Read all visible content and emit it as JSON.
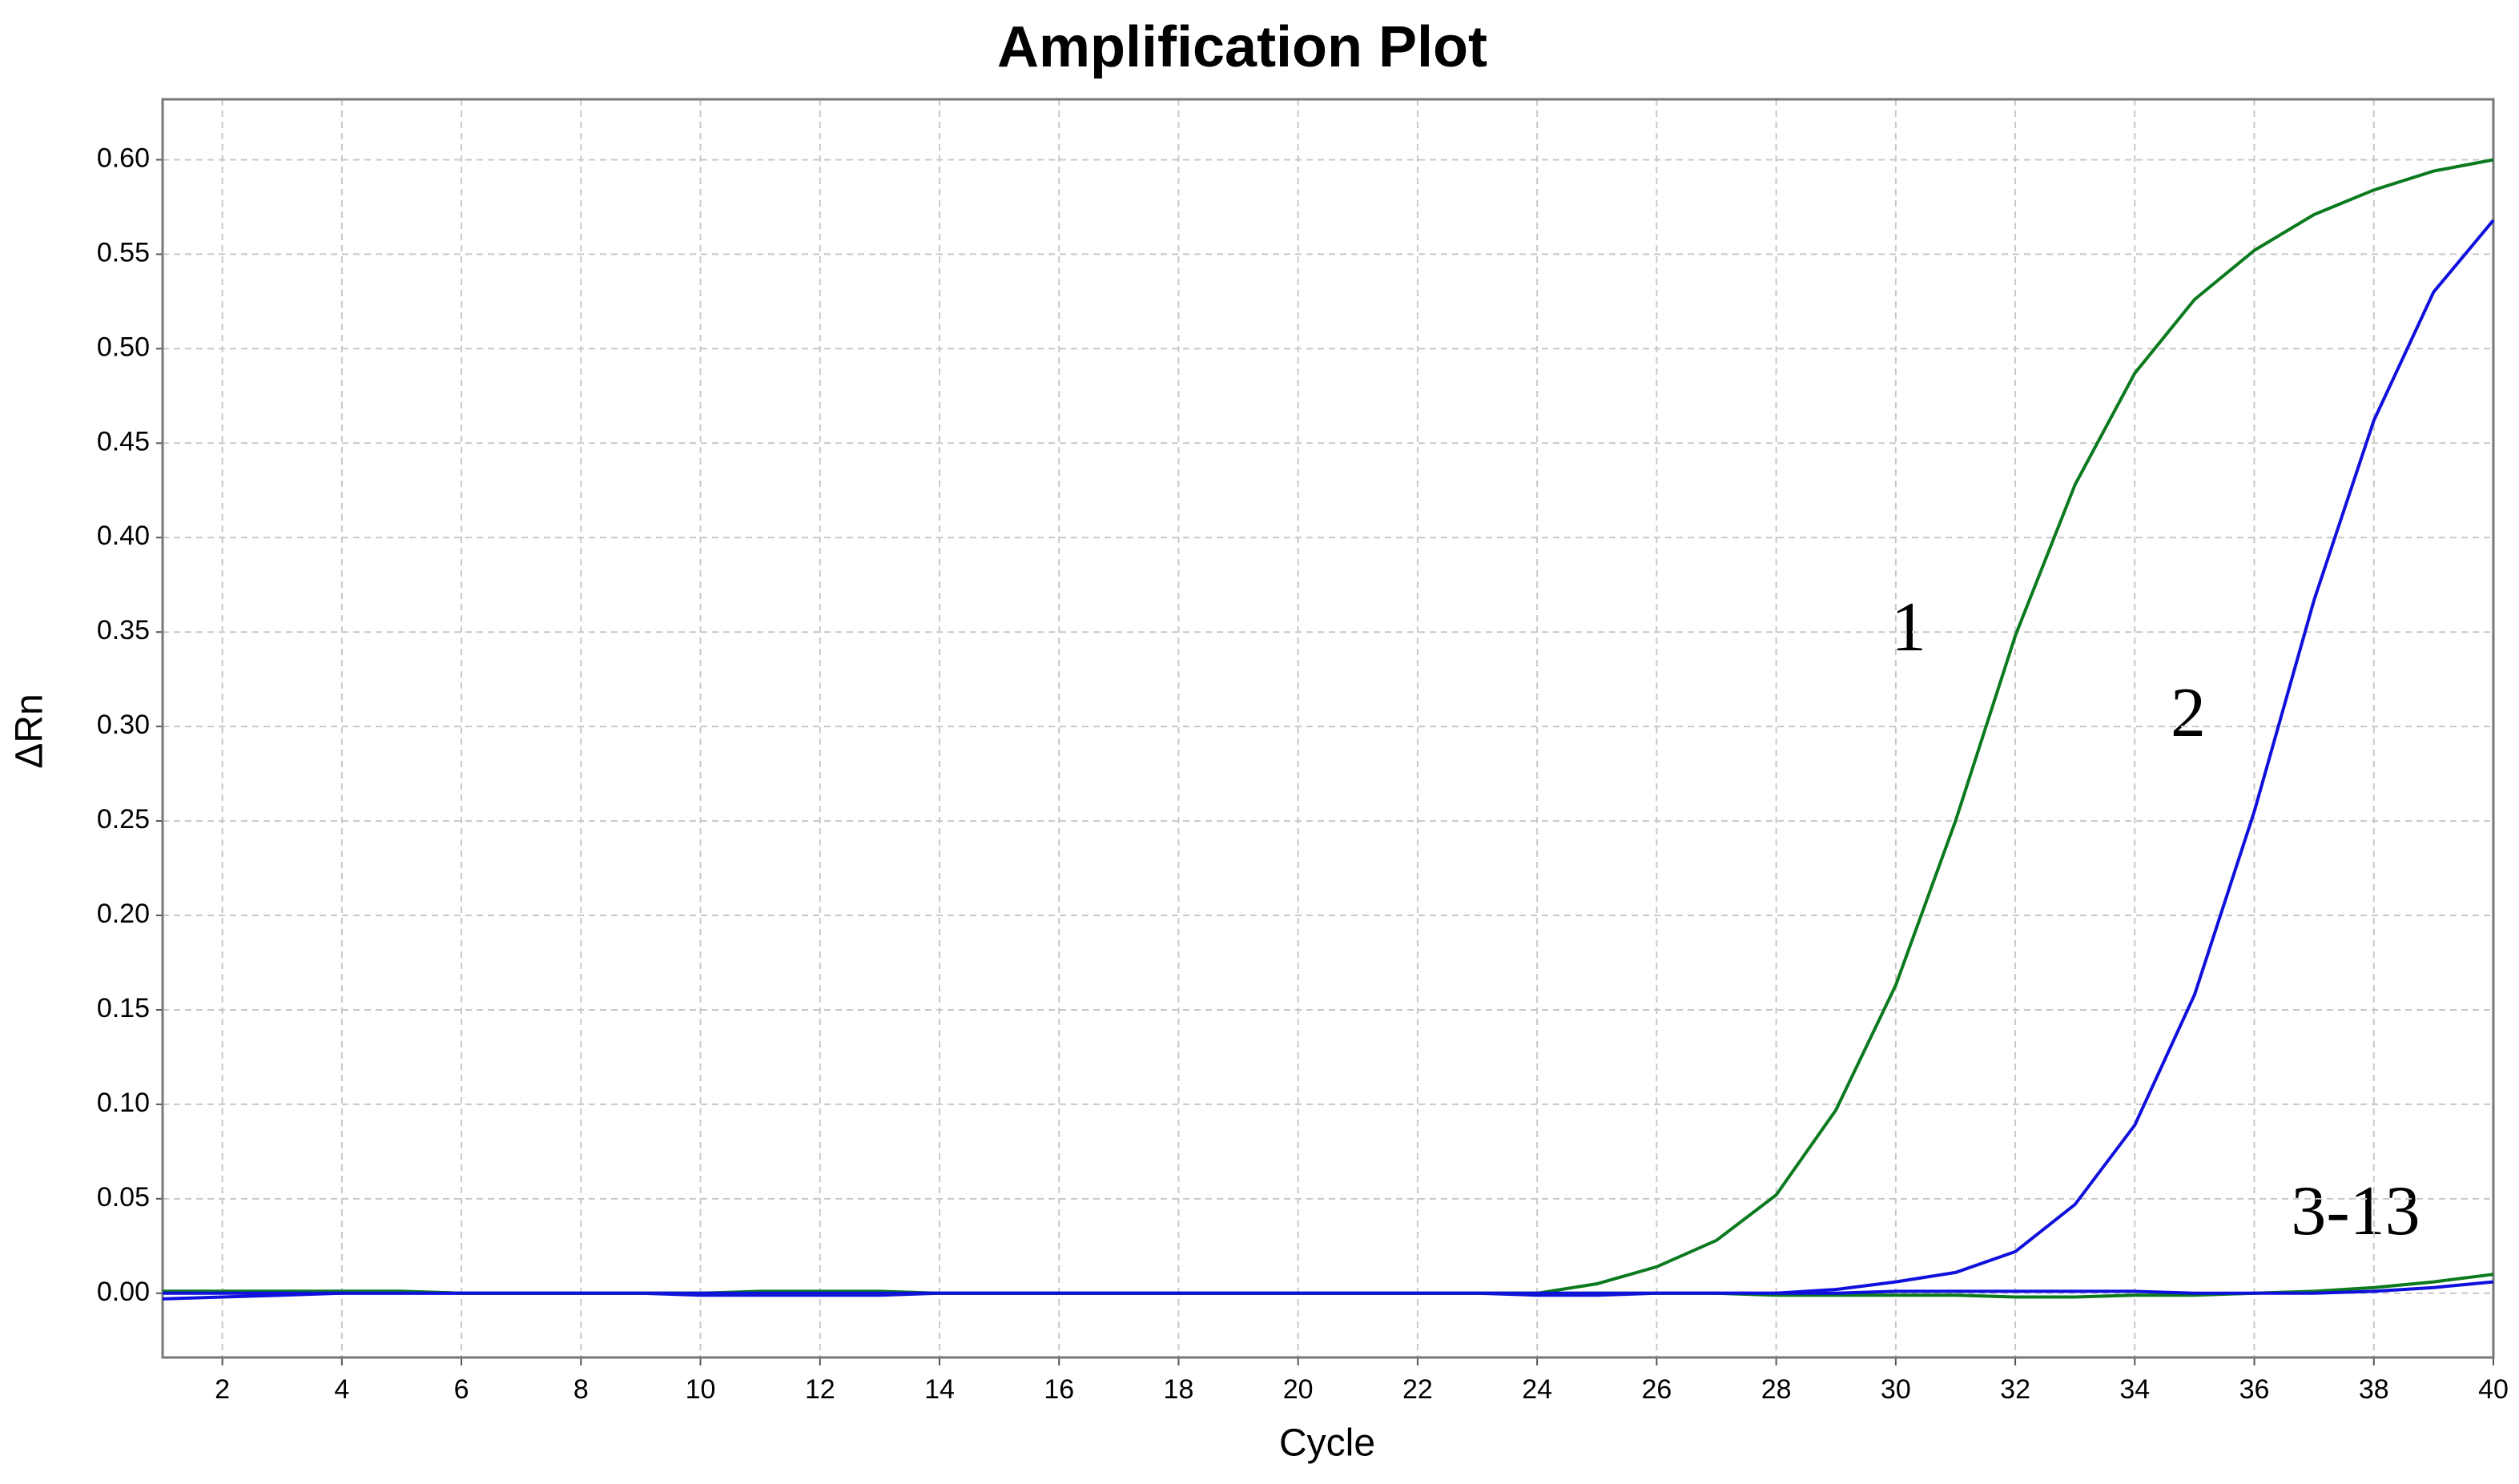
{
  "chart_data": {
    "type": "line",
    "title": "Amplification Plot",
    "x_label": "Cycle",
    "y_label": "ΔRn",
    "x": [
      1,
      2,
      3,
      4,
      5,
      6,
      7,
      8,
      9,
      10,
      11,
      12,
      13,
      14,
      15,
      16,
      17,
      18,
      19,
      20,
      21,
      22,
      23,
      24,
      25,
      26,
      27,
      28,
      29,
      30,
      31,
      32,
      33,
      34,
      35,
      36,
      37,
      38,
      39,
      40
    ],
    "series": [
      {
        "color": "#0b7a1e",
        "values": [
          0.001,
          0.001,
          0.001,
          0.001,
          0.001,
          0,
          0,
          0,
          0,
          0,
          0.001,
          0.001,
          0.001,
          0,
          0,
          0,
          0,
          0,
          0,
          0,
          0,
          0,
          0,
          0,
          0.005,
          0.014,
          0.028,
          0.052,
          0.097,
          0.163,
          0.25,
          0.348,
          0.428,
          0.487,
          0.526,
          0.552,
          0.571,
          0.584,
          0.594,
          0.6
        ]
      },
      {
        "color": "#1010dd",
        "values": [
          -0.003,
          -0.002,
          -0.001,
          0,
          0,
          0,
          0,
          0,
          0,
          -0.001,
          -0.001,
          -0.001,
          -0.001,
          0,
          0,
          0,
          0,
          0,
          0,
          0,
          0,
          0,
          0,
          -0.001,
          -0.001,
          0,
          0,
          0,
          0.002,
          0.006,
          0.011,
          0.022,
          0.047,
          0.089,
          0.158,
          0.255,
          0.367,
          0.462,
          0.53,
          0.568
        ]
      },
      {
        "color": "#0b7a1e",
        "values": [
          0.001,
          0.001,
          0.001,
          0.001,
          0.001,
          0,
          0,
          0,
          0,
          0,
          0,
          0,
          0,
          0,
          0,
          0,
          0,
          0,
          0,
          0,
          0,
          0,
          0,
          0,
          0,
          0,
          0,
          -0.001,
          -0.001,
          -0.001,
          -0.001,
          -0.002,
          -0.002,
          -0.001,
          -0.001,
          0,
          0.001,
          0.003,
          0.006,
          0.01
        ]
      },
      {
        "color": "#1010dd",
        "values": [
          0,
          0,
          0,
          0,
          0,
          0,
          0,
          0,
          0,
          0,
          0,
          0,
          0,
          0,
          0,
          0,
          0,
          0,
          0,
          0,
          0,
          0,
          0,
          0,
          0,
          0,
          0,
          0,
          0,
          0.001,
          0.001,
          0.001,
          0.001,
          0.001,
          0,
          0,
          0,
          0.001,
          0.003,
          0.006
        ]
      }
    ],
    "annotations": [
      "1",
      "2",
      "3-13"
    ],
    "xlim": [
      1,
      40
    ],
    "ylim": [
      -0.034,
      0.632
    ],
    "xticks": [
      2,
      4,
      6,
      8,
      10,
      12,
      14,
      16,
      18,
      20,
      22,
      24,
      26,
      28,
      30,
      32,
      34,
      36,
      38,
      40
    ],
    "yticks": [
      {
        "value": 0,
        "label": "0.00"
      },
      {
        "value": 0.05,
        "label": "0.05"
      },
      {
        "value": 0.1,
        "label": "0.10"
      },
      {
        "value": 0.15,
        "label": "0.15"
      },
      {
        "value": 0.2,
        "label": "0.20"
      },
      {
        "value": 0.25,
        "label": "0.25"
      },
      {
        "value": 0.3,
        "label": "0.30"
      },
      {
        "value": 0.35,
        "label": "0.35"
      },
      {
        "value": 0.4,
        "label": "0.40"
      },
      {
        "value": 0.45,
        "label": "0.45"
      },
      {
        "value": 0.5,
        "label": "0.50"
      },
      {
        "value": 0.55,
        "label": "0.55"
      },
      {
        "value": 0.6,
        "label": "0.60"
      }
    ],
    "grid": true
  }
}
